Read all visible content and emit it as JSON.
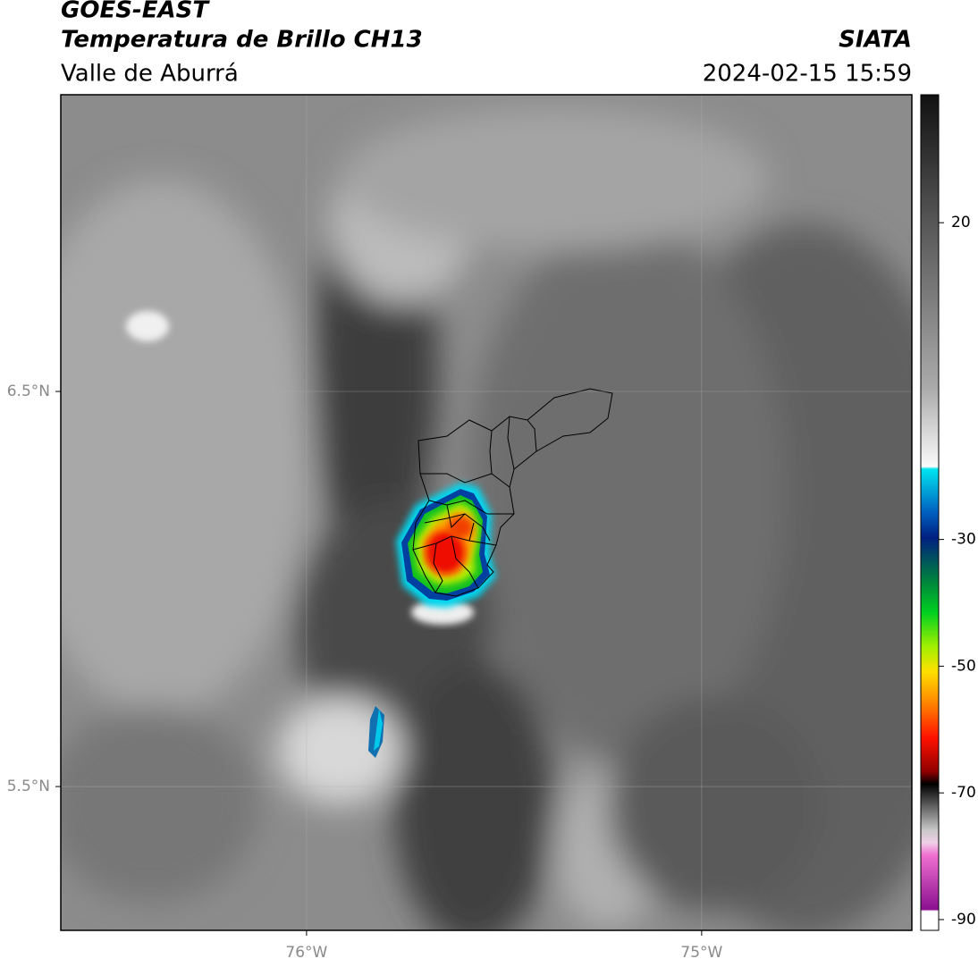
{
  "header": {
    "title": "GOES-EAST",
    "subtitle": "Temperatura de Brillo CH13",
    "region": "Valle de Aburrá",
    "source": "SIATA",
    "timestamp": "2024-02-15 15:59"
  },
  "map": {
    "lon_range": [
      -76.622,
      -74.468
    ],
    "lat_range": [
      5.136,
      7.251
    ],
    "lon_ticks": [
      {
        "value": -76,
        "label": "76°W"
      },
      {
        "value": -75,
        "label": "75°W"
      }
    ],
    "lat_ticks": [
      {
        "value": 6.5,
        "label": "6.5°N"
      },
      {
        "value": 5.5,
        "label": "5.5°N"
      }
    ]
  },
  "colorbar": {
    "range": [
      -91.7,
      40.2
    ],
    "ticks": [
      20,
      -30,
      -50,
      -70,
      -90
    ]
  }
}
